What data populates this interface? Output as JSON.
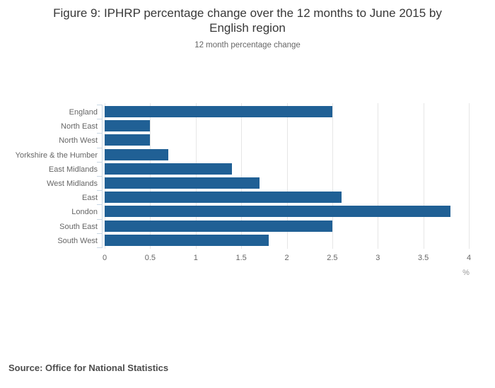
{
  "chart_data": {
    "type": "bar",
    "orientation": "horizontal",
    "title": "Figure 9: IPHRP percentage change over the 12 months to June 2015 by English region",
    "subtitle": "12 month percentage change",
    "categories": [
      "England",
      "North East",
      "North West",
      "Yorkshire & the Humber",
      "East Midlands",
      "West Midlands",
      "East",
      "London",
      "South East",
      "South West"
    ],
    "values": [
      2.5,
      0.5,
      0.5,
      0.7,
      1.4,
      1.7,
      2.6,
      3.8,
      2.5,
      1.8
    ],
    "x_ticks": [
      0,
      0.5,
      1,
      1.5,
      2,
      2.5,
      3,
      3.5,
      4
    ],
    "xlim": [
      0,
      4
    ],
    "xlabel": "%",
    "grid": true,
    "legend": "none",
    "bar_color": "#206095",
    "gridline_color": "#e6e6e6",
    "axis_color": "#c9d7e3",
    "label_color": "#666666"
  },
  "footer": {
    "source": "Source: Office for National Statistics"
  }
}
